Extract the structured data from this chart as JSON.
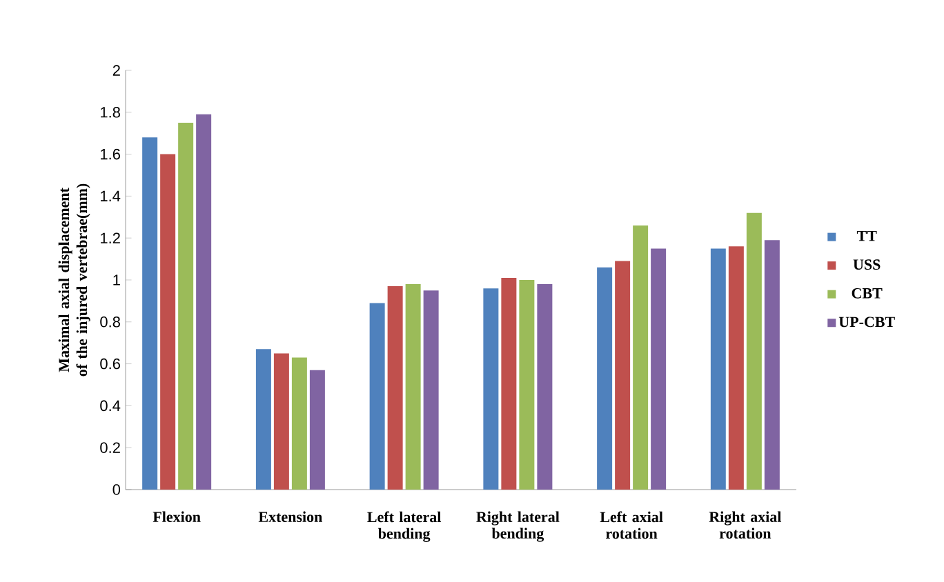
{
  "chart_data": {
    "type": "bar",
    "ylabel": "Maximal axial displacement of the injured vertebrae(mm)",
    "categories": [
      "Flexion",
      "Extension",
      "Left lateral bending",
      "Right lateral bending",
      "Left axial rotation",
      "Right axial rotation"
    ],
    "series": [
      {
        "name": "TT",
        "color": "#4f81bd",
        "values": [
          1.68,
          0.67,
          0.89,
          0.96,
          1.06,
          1.15
        ]
      },
      {
        "name": "USS",
        "color": "#c0504d",
        "values": [
          1.6,
          0.65,
          0.97,
          1.01,
          1.09,
          1.16
        ]
      },
      {
        "name": "CBT",
        "color": "#9bbb59",
        "values": [
          1.75,
          0.63,
          0.98,
          1.0,
          1.26,
          1.32
        ]
      },
      {
        "name": "UP-CBT",
        "color": "#8064a2",
        "values": [
          1.79,
          0.57,
          0.95,
          0.98,
          1.15,
          1.19
        ]
      }
    ],
    "ylim": [
      0,
      2
    ],
    "yticks": [
      0,
      0.2,
      0.4,
      0.6,
      0.8,
      1,
      1.2,
      1.4,
      1.6,
      1.8,
      2
    ],
    "legend": "right"
  }
}
